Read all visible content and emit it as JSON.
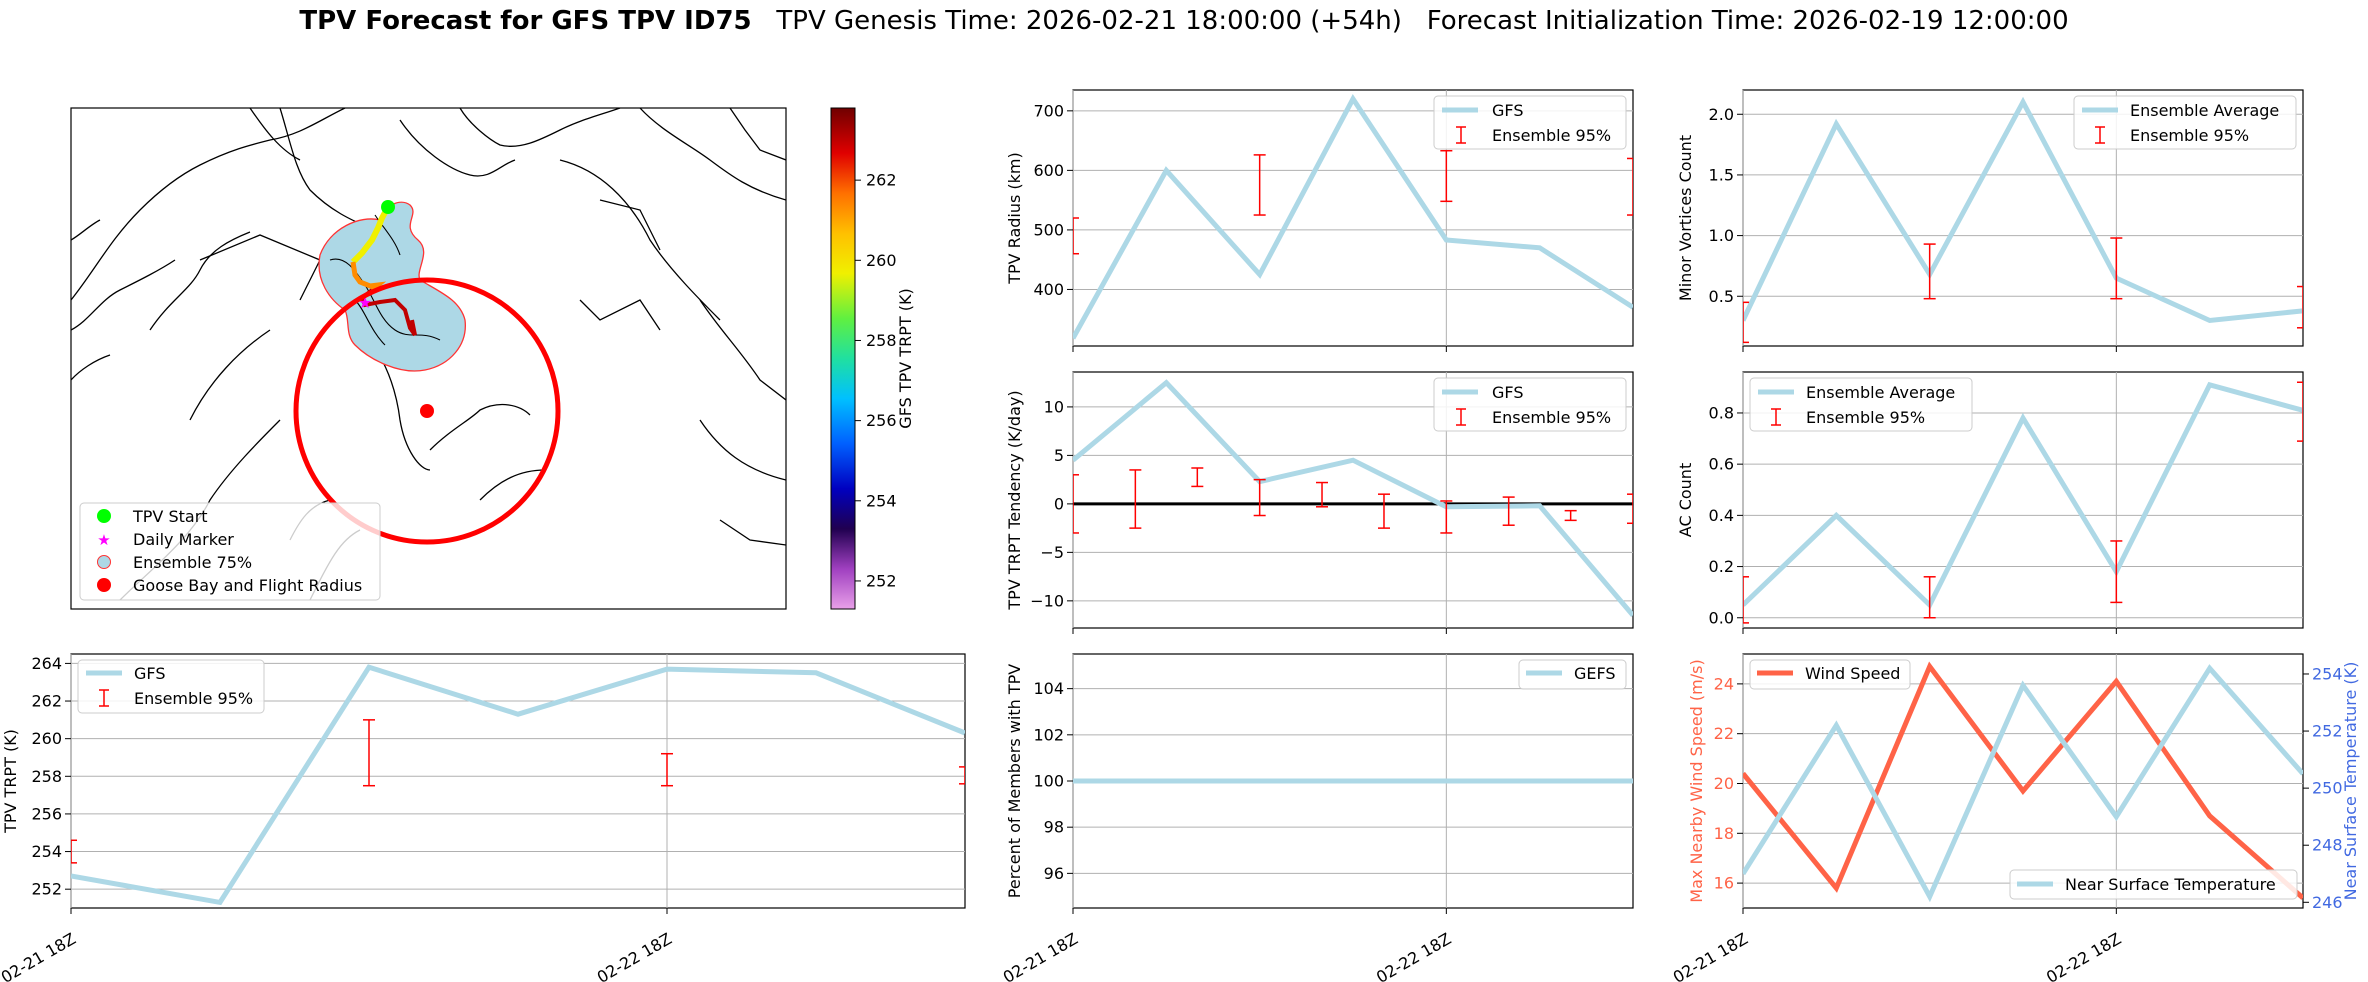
{
  "title": {
    "bold": "TPV Forecast for GFS TPV ID75",
    "genesis": "TPV Genesis Time: 2026-02-21 18:00:00 (+54h)",
    "init": "Forecast Initialization Time: 2026-02-19 12:00:00"
  },
  "colors": {
    "gfs": "#add8e6",
    "ens": "#ff0000",
    "wind": "#ff6347",
    "temp_axis": "#4169e1",
    "zero": "#000000"
  },
  "x_ticks": [
    "02-21 18Z",
    "02-22 18Z"
  ],
  "map": {
    "legend": [
      "TPV Start",
      "Daily Marker",
      "Ensemble 75%",
      "Goose Bay and Flight Radius"
    ],
    "colorbar": {
      "label": "GFS TPV TRPT (K)",
      "min": 251.3,
      "max": 263.8,
      "ticks": [
        252,
        254,
        256,
        258,
        260,
        262
      ]
    }
  },
  "chart_data": [
    {
      "id": "trpt",
      "type": "line",
      "ylabel": "TPV TRPT (K)",
      "x": [
        0,
        0.25,
        0.5,
        0.75,
        1,
        1.25,
        1.5
      ],
      "xlim": [
        0,
        1.5
      ],
      "ylim": [
        251.0,
        264.5
      ],
      "yticks": [
        252,
        254,
        256,
        258,
        260,
        262,
        264
      ],
      "series": [
        {
          "name": "GFS",
          "values": [
            252.7,
            251.3,
            263.8,
            261.3,
            263.7,
            263.5,
            260.3
          ]
        }
      ],
      "errorbars": {
        "name": "Ensemble 95%",
        "x": [
          0,
          0.5,
          1,
          1.5
        ],
        "low": [
          253.4,
          257.5,
          257.5,
          257.6
        ],
        "high": [
          254.6,
          261.0,
          259.2,
          258.5
        ]
      },
      "legend": [
        "GFS",
        "Ensemble 95%"
      ]
    },
    {
      "id": "radius",
      "type": "line",
      "ylabel": "TPV Radius (km)",
      "x": [
        0,
        0.25,
        0.5,
        0.75,
        1,
        1.25,
        1.5
      ],
      "xlim": [
        0,
        1.5
      ],
      "ylim": [
        305,
        735
      ],
      "yticks": [
        400,
        500,
        600,
        700
      ],
      "series": [
        {
          "name": "GFS",
          "values": [
            318,
            600,
            425,
            720,
            483,
            470,
            370
          ]
        }
      ],
      "errorbars": {
        "name": "Ensemble 95%",
        "x": [
          0,
          0.5,
          1,
          1.5
        ],
        "low": [
          460,
          525,
          548,
          525
        ],
        "high": [
          520,
          626,
          633,
          620
        ]
      },
      "legend": [
        "GFS",
        "Ensemble 95%"
      ]
    },
    {
      "id": "minor",
      "type": "line",
      "ylabel": "Minor Vortices Count",
      "x": [
        0,
        0.25,
        0.5,
        0.75,
        1,
        1.25,
        1.5
      ],
      "xlim": [
        0,
        1.5
      ],
      "ylim": [
        0.09,
        2.2
      ],
      "yticks": [
        0.5,
        1.0,
        1.5,
        2.0
      ],
      "series": [
        {
          "name": "Ensemble Average",
          "values": [
            0.3,
            1.92,
            0.68,
            2.1,
            0.65,
            0.3,
            0.38
          ]
        }
      ],
      "errorbars": {
        "name": "Ensemble 95%",
        "x": [
          0,
          0.5,
          1,
          1.5
        ],
        "low": [
          0.12,
          0.48,
          0.48,
          0.24
        ],
        "high": [
          0.45,
          0.93,
          0.98,
          0.58
        ]
      },
      "legend": [
        "Ensemble Average",
        "Ensemble 95%"
      ]
    },
    {
      "id": "tendency",
      "type": "line",
      "ylabel": "TPV TRPT Tendency (K/day)",
      "x": [
        0,
        0.25,
        0.5,
        0.75,
        1,
        1.25,
        1.5
      ],
      "xlim": [
        0,
        1.5
      ],
      "ylim": [
        -12.8,
        13.6
      ],
      "yticks": [
        -10,
        -5,
        0,
        5,
        10
      ],
      "series": [
        {
          "name": "GFS",
          "values": [
            4.5,
            12.5,
            2.3,
            4.5,
            -0.3,
            -0.2,
            -11.5
          ]
        }
      ],
      "zero_line": 0,
      "errorbars": {
        "name": "Ensemble 95%",
        "x": [
          0,
          0.167,
          0.333,
          0.5,
          0.667,
          0.833,
          1,
          1.167,
          1.333,
          1.5
        ],
        "low": [
          -3,
          -2.5,
          1.8,
          -1.2,
          -0.3,
          -2.5,
          -3.0,
          -2.2,
          -1.7,
          -2.0
        ],
        "high": [
          3,
          3.5,
          3.7,
          2.5,
          2.2,
          1.0,
          0.3,
          0.7,
          -0.7,
          1.0
        ]
      },
      "legend": [
        "GFS",
        "Ensemble 95%"
      ]
    },
    {
      "id": "ac",
      "type": "line",
      "ylabel": "AC Count",
      "x": [
        0,
        0.25,
        0.5,
        0.75,
        1,
        1.25,
        1.5
      ],
      "xlim": [
        0,
        1.5
      ],
      "ylim": [
        -0.04,
        0.96
      ],
      "yticks": [
        0.0,
        0.2,
        0.4,
        0.6,
        0.8
      ],
      "series": [
        {
          "name": "Ensemble Average",
          "values": [
            0.05,
            0.4,
            0.05,
            0.78,
            0.18,
            0.91,
            0.81
          ]
        }
      ],
      "errorbars": {
        "name": "Ensemble 95%",
        "x": [
          0,
          0.5,
          1,
          1.5
        ],
        "low": [
          -0.02,
          0.0,
          0.06,
          0.69
        ],
        "high": [
          0.16,
          0.16,
          0.3,
          0.92
        ]
      },
      "legend": [
        "Ensemble Average",
        "Ensemble 95%"
      ]
    },
    {
      "id": "members",
      "type": "line",
      "ylabel": "Percent of Members with TPV",
      "x": [
        0,
        1.5
      ],
      "xlim": [
        0,
        1.5
      ],
      "ylim": [
        94.5,
        105.5
      ],
      "yticks": [
        96,
        98,
        100,
        102,
        104
      ],
      "series": [
        {
          "name": "GEFS",
          "values": [
            100,
            100
          ]
        }
      ],
      "legend": [
        "GEFS"
      ]
    },
    {
      "id": "wind",
      "type": "line",
      "ylabel": "Max Nearby Wind Speed (m/s)",
      "ylabel_right": "Near Surface Temperature (K)",
      "x": [
        0,
        0.25,
        0.5,
        0.75,
        1,
        1.25,
        1.5
      ],
      "xlim": [
        0,
        1.5
      ],
      "ylim": [
        15.0,
        25.2
      ],
      "yticks": [
        16,
        18,
        20,
        22,
        24
      ],
      "ylim_right": [
        245.8,
        254.7
      ],
      "yticks_right": [
        246,
        248,
        250,
        252,
        254
      ],
      "series": [
        {
          "name": "Wind Speed",
          "axis": "left",
          "values": [
            20.4,
            15.8,
            24.7,
            19.7,
            24.1,
            18.7,
            15.4
          ]
        },
        {
          "name": "Near Surface Temperature",
          "axis": "right",
          "values": [
            247.0,
            252.2,
            246.2,
            253.6,
            249.0,
            254.2,
            250.5
          ]
        }
      ],
      "legend": [
        "Wind Speed",
        "Near Surface Temperature"
      ]
    }
  ]
}
